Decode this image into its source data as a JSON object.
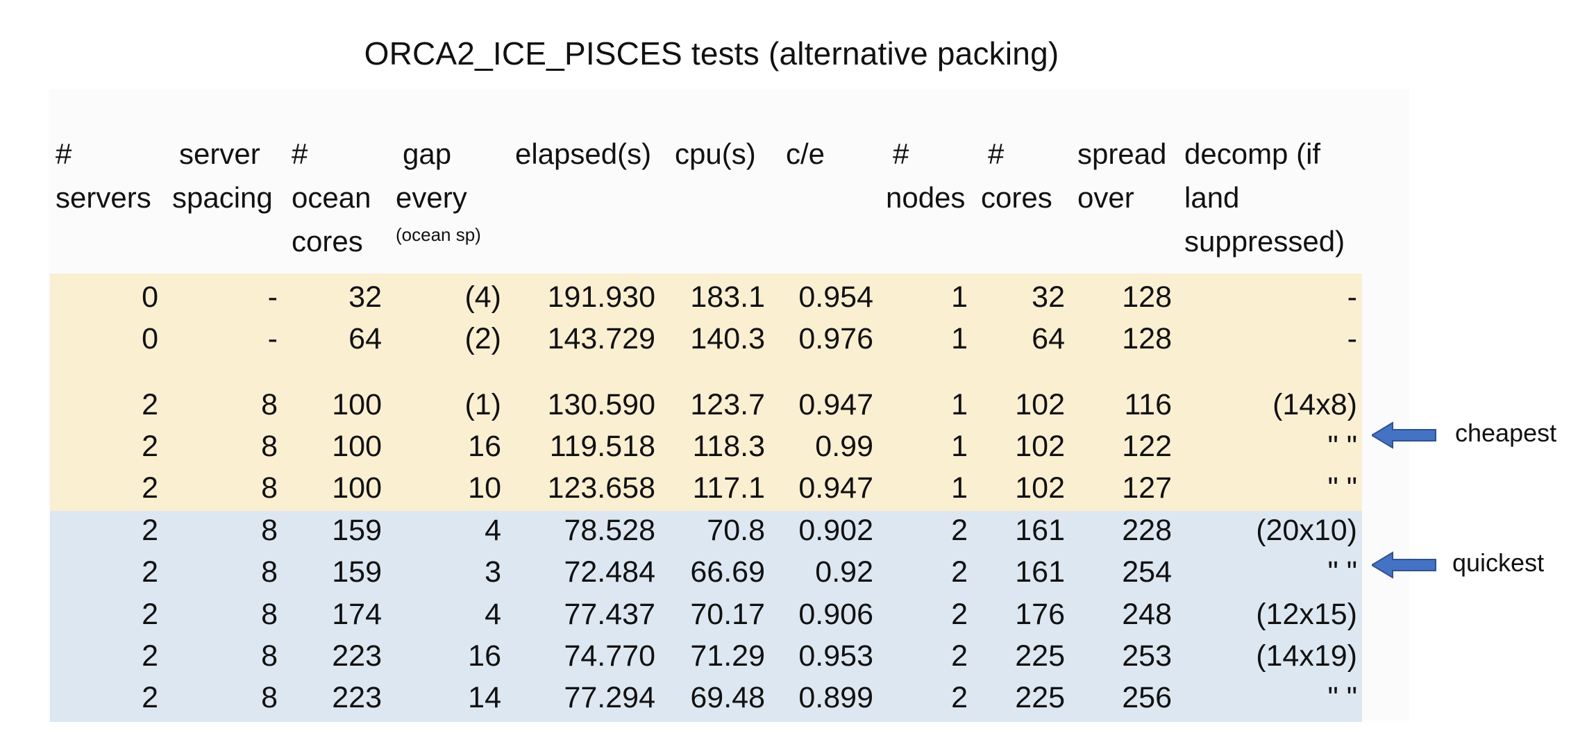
{
  "title": "ORCA2_ICE_PISCES tests (alternative packing)",
  "headers": [
    {
      "lines": [
        "#",
        "servers"
      ]
    },
    {
      "lines": [
        "server",
        "spacing"
      ]
    },
    {
      "lines": [
        "#",
        "ocean",
        "cores"
      ]
    },
    {
      "lines": [
        "gap",
        "every"
      ],
      "small": "(ocean sp)"
    },
    {
      "lines": [
        "elapsed(s)"
      ]
    },
    {
      "lines": [
        "cpu(s)"
      ]
    },
    {
      "lines": [
        "c/e"
      ]
    },
    {
      "lines": [
        "#",
        "nodes"
      ]
    },
    {
      "lines": [
        "#",
        "cores"
      ]
    },
    {
      "lines": [
        "spread",
        "over"
      ]
    },
    {
      "lines": [
        "decomp (if",
        "land",
        "suppressed)"
      ]
    }
  ],
  "rows": [
    [
      "0",
      "-",
      "32",
      "(4)",
      "191.930",
      "183.1",
      "0.954",
      "1",
      "32",
      "128",
      "-"
    ],
    [
      "0",
      "-",
      "64",
      "(2)",
      "143.729",
      "140.3",
      "0.976",
      "1",
      "64",
      "128",
      "-"
    ],
    [
      "2",
      "8",
      "100",
      "(1)",
      "130.590",
      "123.7",
      "0.947",
      "1",
      "102",
      "116",
      "(14x8)"
    ],
    [
      "2",
      "8",
      "100",
      "16",
      "119.518",
      "118.3",
      "0.99",
      "1",
      "102",
      "122",
      "\" \""
    ],
    [
      "2",
      "8",
      "100",
      "10",
      "123.658",
      "117.1",
      "0.947",
      "1",
      "102",
      "127",
      "\" \""
    ],
    [
      "2",
      "8",
      "159",
      "4",
      "78.528",
      "70.8",
      "0.902",
      "2",
      "161",
      "228",
      "(20x10)"
    ],
    [
      "2",
      "8",
      "159",
      "3",
      "72.484",
      "66.69",
      "0.92",
      "2",
      "161",
      "254",
      "\" \""
    ],
    [
      "2",
      "8",
      "174",
      "4",
      "77.437",
      "70.17",
      "0.906",
      "2",
      "176",
      "248",
      "(12x15)"
    ],
    [
      "2",
      "8",
      "223",
      "16",
      "74.770",
      "71.29",
      "0.953",
      "2",
      "225",
      "253",
      "(14x19)"
    ],
    [
      "2",
      "8",
      "223",
      "14",
      "77.294",
      "69.48",
      "0.899",
      "2",
      "225",
      "256",
      "\" \""
    ]
  ],
  "annotations": {
    "cheapest": "cheapest",
    "quickest": "quickest"
  },
  "colors": {
    "yellow_band": "#fbefd2",
    "blue_band": "#dde7f2",
    "arrow_fill": "#4472c4",
    "arrow_stroke": "#2f528f"
  }
}
